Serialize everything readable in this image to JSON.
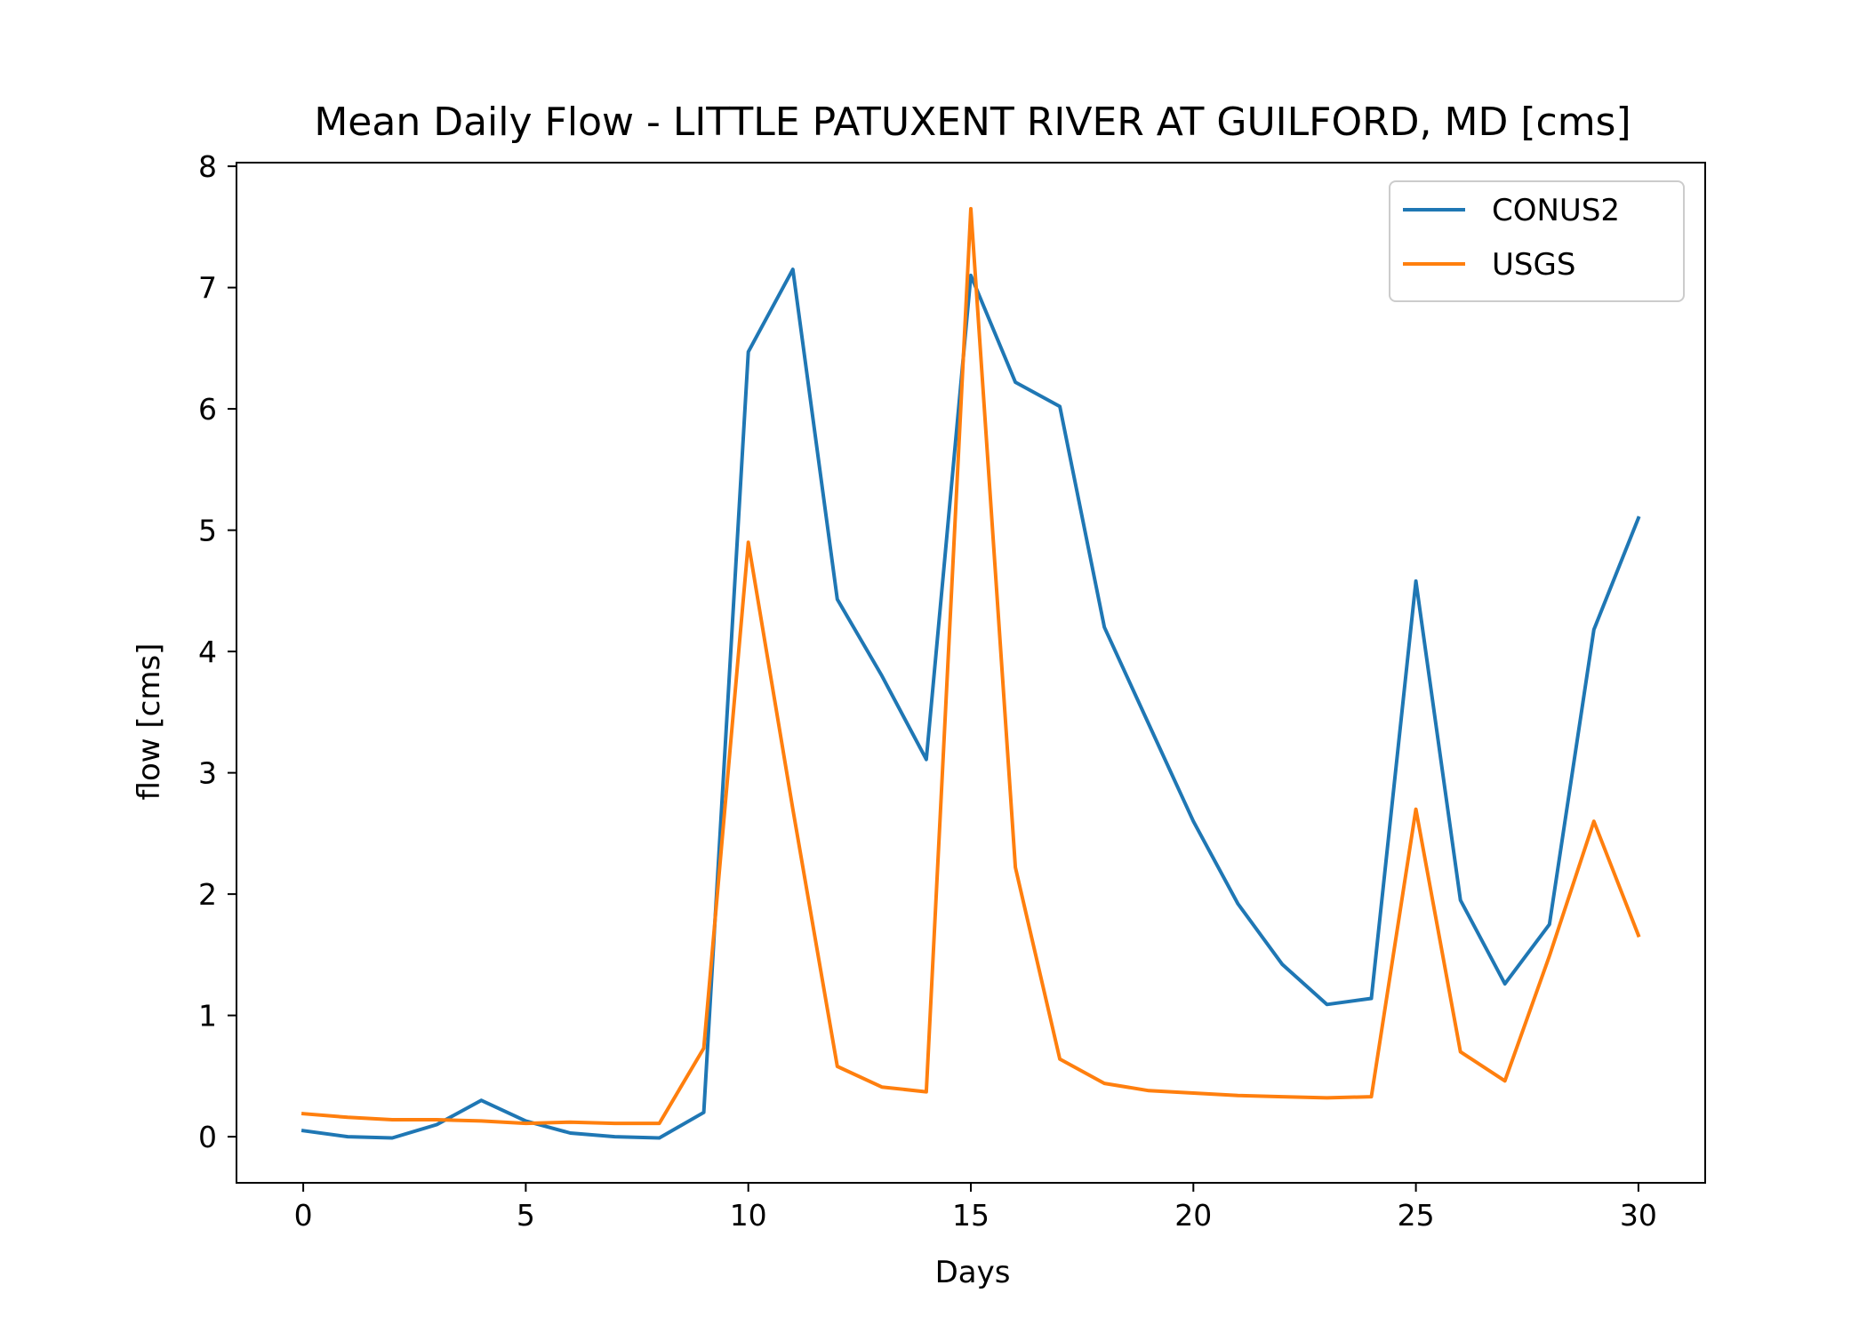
{
  "chart_data": {
    "type": "line",
    "title": "Mean Daily Flow - LITTLE PATUXENT RIVER AT GUILFORD, MD [cms]",
    "xlabel": "Days",
    "ylabel": "flow [cms]",
    "xlim": [
      -1.5,
      31.5
    ],
    "ylim": [
      -0.38,
      8.03
    ],
    "xticks": [
      0,
      5,
      10,
      15,
      20,
      25,
      30
    ],
    "yticks": [
      0,
      1,
      2,
      3,
      4,
      5,
      6,
      7,
      8
    ],
    "grid": false,
    "legend_position": "top-right",
    "x": [
      0,
      1,
      2,
      3,
      4,
      5,
      6,
      7,
      8,
      9,
      10,
      11,
      12,
      13,
      14,
      15,
      16,
      17,
      18,
      19,
      20,
      21,
      22,
      23,
      24,
      25,
      26,
      27,
      28,
      29,
      30
    ],
    "series": [
      {
        "name": "CONUS2",
        "color": "#1f77b4",
        "values": [
          0.05,
          0.0,
          -0.01,
          0.1,
          0.3,
          0.13,
          0.03,
          0.0,
          -0.01,
          0.2,
          6.47,
          7.15,
          4.43,
          3.8,
          3.11,
          7.1,
          6.22,
          6.02,
          4.2,
          3.4,
          2.6,
          1.92,
          1.42,
          1.09,
          1.14,
          4.58,
          1.95,
          1.26,
          1.75,
          4.18,
          5.1
        ]
      },
      {
        "name": "USGS",
        "color": "#ff7f0e",
        "values": [
          0.19,
          0.16,
          0.14,
          0.14,
          0.13,
          0.11,
          0.12,
          0.11,
          0.11,
          0.73,
          4.9,
          2.7,
          0.58,
          0.41,
          0.37,
          7.65,
          2.22,
          0.64,
          0.44,
          0.38,
          0.36,
          0.34,
          0.33,
          0.32,
          0.33,
          2.7,
          0.7,
          0.46,
          1.49,
          2.6,
          1.66
        ]
      }
    ]
  }
}
